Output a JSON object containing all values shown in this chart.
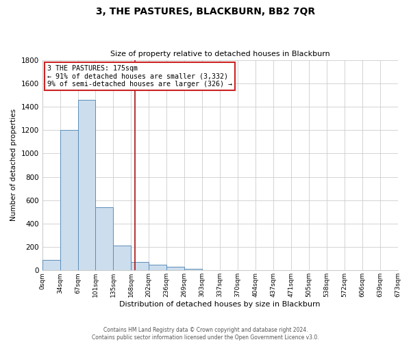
{
  "title": "3, THE PASTURES, BLACKBURN, BB2 7QR",
  "subtitle": "Size of property relative to detached houses in Blackburn",
  "xlabel": "Distribution of detached houses by size in Blackburn",
  "ylabel": "Number of detached properties",
  "bin_labels": [
    "0sqm",
    "34sqm",
    "67sqm",
    "101sqm",
    "135sqm",
    "168sqm",
    "202sqm",
    "236sqm",
    "269sqm",
    "303sqm",
    "337sqm",
    "370sqm",
    "404sqm",
    "437sqm",
    "471sqm",
    "505sqm",
    "538sqm",
    "572sqm",
    "606sqm",
    "639sqm",
    "673sqm"
  ],
  "bar_values": [
    90,
    1200,
    1460,
    540,
    210,
    70,
    50,
    30,
    15,
    0,
    0,
    0,
    0,
    0,
    0,
    0,
    0,
    0,
    0,
    0
  ],
  "bar_color": "#ccdded",
  "bar_edge_color": "#5b8db8",
  "ylim": [
    0,
    1800
  ],
  "yticks": [
    0,
    200,
    400,
    600,
    800,
    1000,
    1200,
    1400,
    1600,
    1800
  ],
  "property_value": 175,
  "vline_color": "#aa2222",
  "annotation_box_color": "#cc2222",
  "annotation_text_line1": "3 THE PASTURES: 175sqm",
  "annotation_text_line2": "← 91% of detached houses are smaller (3,332)",
  "annotation_text_line3": "9% of semi-detached houses are larger (326) →",
  "footer1": "Contains HM Land Registry data © Crown copyright and database right 2024.",
  "footer2": "Contains public sector information licensed under the Open Government Licence v3.0.",
  "background_color": "#ffffff",
  "grid_color": "#cccccc"
}
